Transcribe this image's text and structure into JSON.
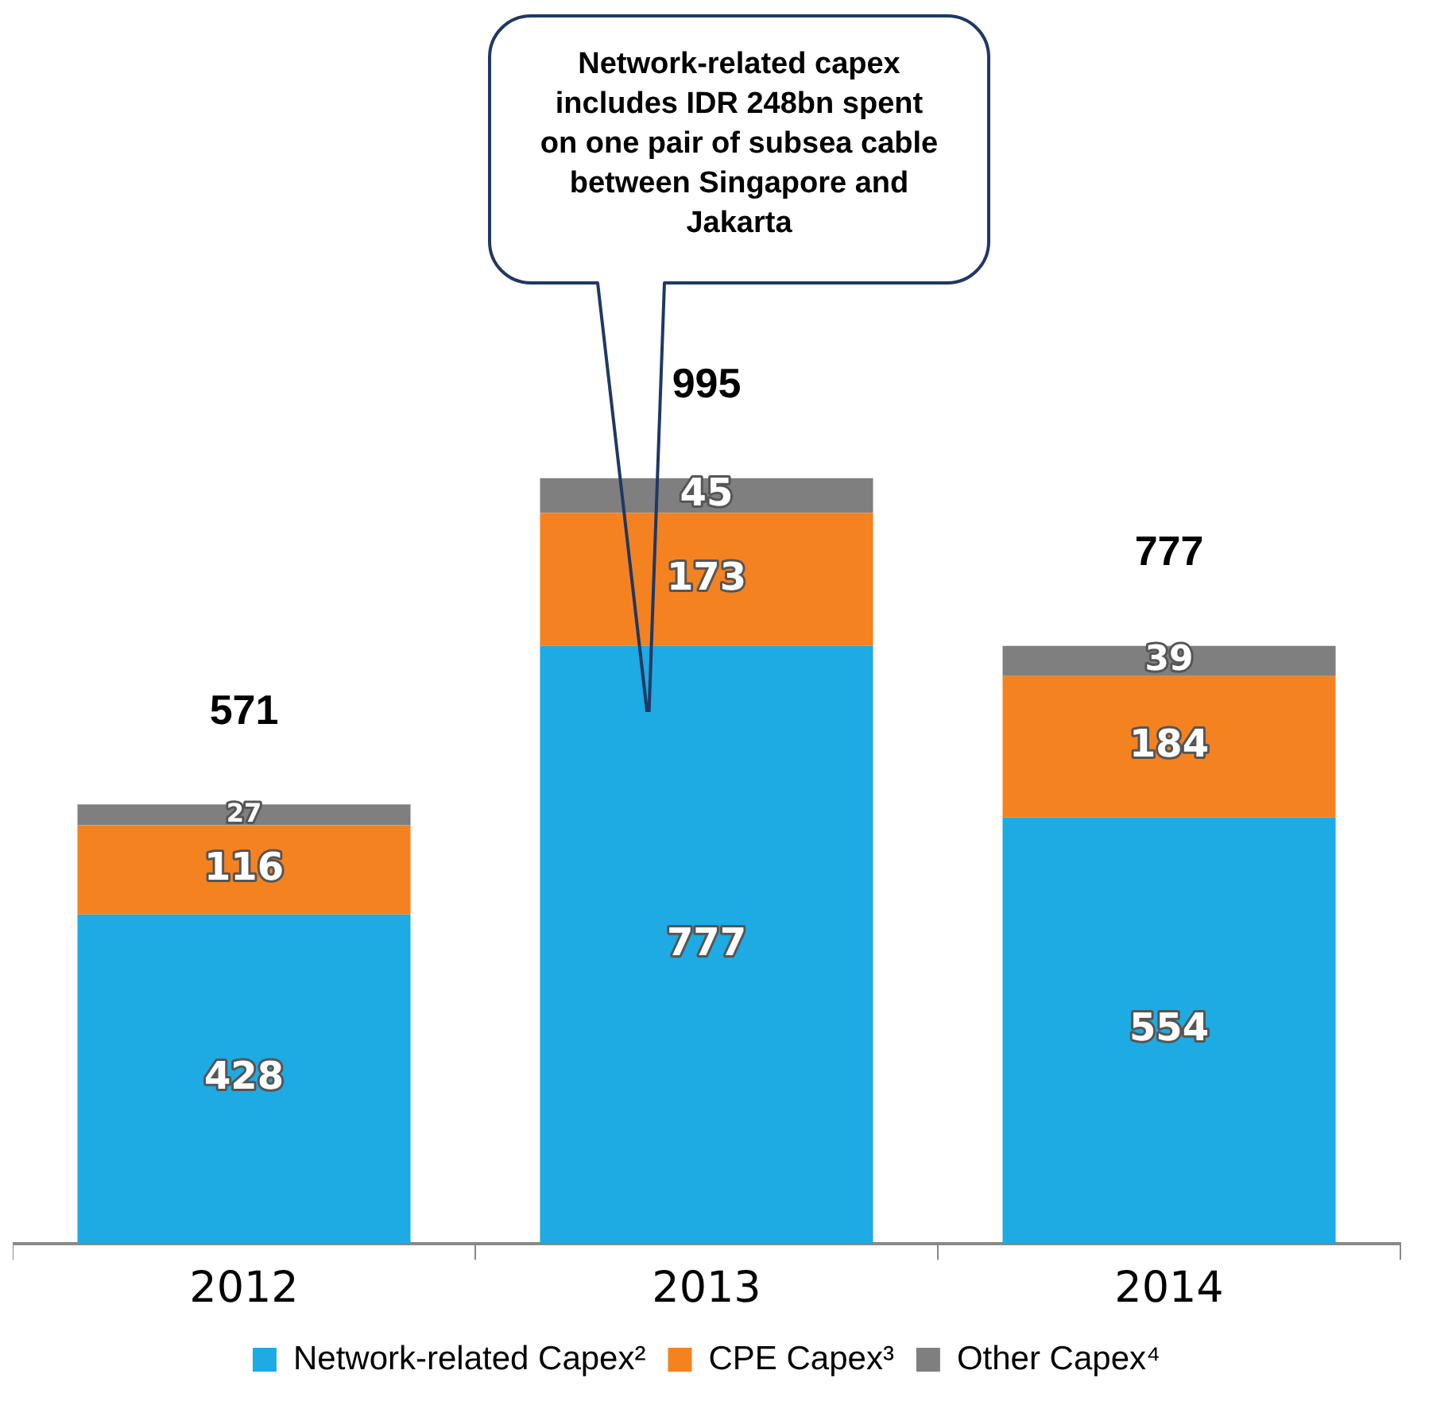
{
  "chart_data": {
    "type": "bar",
    "stacked": true,
    "categories": [
      "2012",
      "2013",
      "2014"
    ],
    "series": [
      {
        "name": "Network-related Capex²",
        "color": "#1eaae2",
        "values": [
          428,
          777,
          554
        ]
      },
      {
        "name": "CPE Capex³",
        "color": "#f58220",
        "values": [
          116,
          173,
          184
        ]
      },
      {
        "name": "Other Capex⁴",
        "color": "#7f7f7f",
        "values": [
          27,
          45,
          39
        ]
      }
    ],
    "data_labels": true,
    "totals": [
      "571",
      "995",
      "777"
    ],
    "legend": "bottom",
    "tick_labels": "x",
    "annotations": [
      "Network-related capex includes IDR 248bn spent on one pair of subsea cable between Singapore and Jakarta"
    ]
  }
}
